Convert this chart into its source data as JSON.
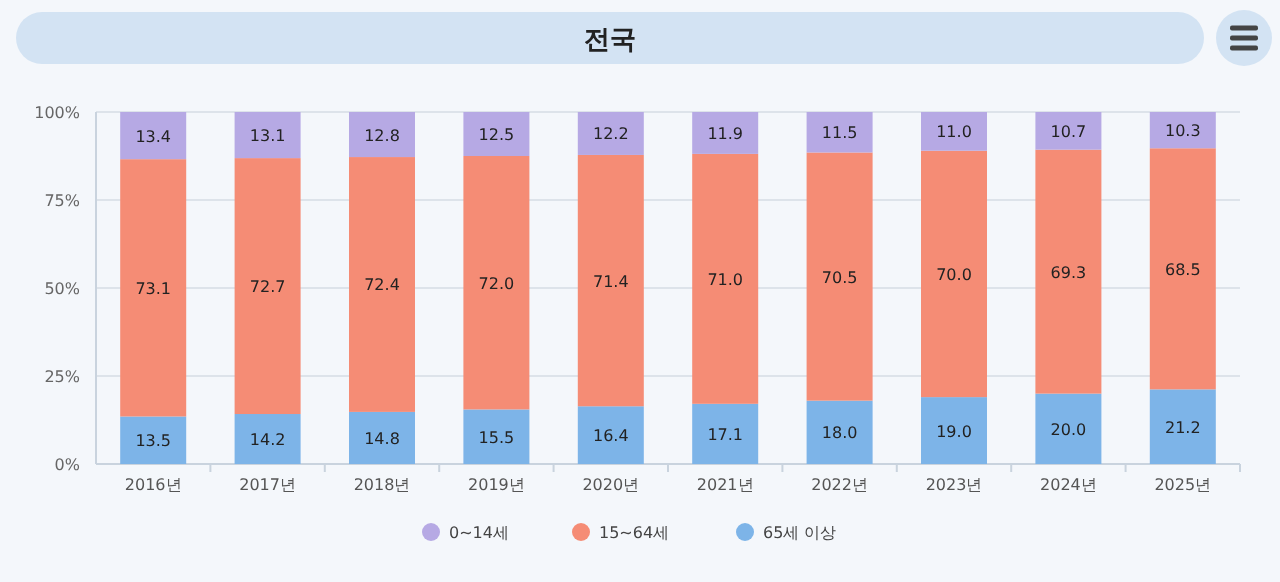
{
  "chart_data": {
    "type": "bar",
    "title": "전국",
    "stacked": true,
    "grid": "y",
    "legend": "bottom",
    "categories": [
      "2016년",
      "2017년",
      "2018년",
      "2019년",
      "2020년",
      "2021년",
      "2022년",
      "2023년",
      "2024년",
      "2025년"
    ],
    "ylim": [
      0,
      100
    ],
    "yticks": [
      {
        "value": 0,
        "label": "0%"
      },
      {
        "value": 25,
        "label": "25%"
      },
      {
        "value": 50,
        "label": "50%"
      },
      {
        "value": 75,
        "label": "75%"
      },
      {
        "value": 100,
        "label": "100%"
      }
    ],
    "series": [
      {
        "name": "65세 이상",
        "color": "#7db4e8",
        "values": [
          13.5,
          14.2,
          14.8,
          15.5,
          16.4,
          17.1,
          18.0,
          19.0,
          20.0,
          21.2
        ],
        "value_labels": [
          "13.5",
          "14.2",
          "14.8",
          "15.5",
          "16.4",
          "17.1",
          "18.0",
          "19.0",
          "20.0",
          "21.2"
        ]
      },
      {
        "name": "15~64세",
        "color": "#f58c75",
        "values": [
          73.1,
          72.7,
          72.4,
          72.0,
          71.4,
          71.0,
          70.5,
          70.0,
          69.3,
          68.5
        ],
        "value_labels": [
          "73.1",
          "72.7",
          "72.4",
          "72.0",
          "71.4",
          "71.0",
          "70.5",
          "70.0",
          "69.3",
          "68.5"
        ]
      },
      {
        "name": "0~14세",
        "color": "#b6a9e4",
        "values": [
          13.4,
          13.1,
          12.8,
          12.5,
          12.2,
          11.9,
          11.5,
          11.0,
          10.7,
          10.3
        ],
        "value_labels": [
          "13.4",
          "13.1",
          "12.8",
          "12.5",
          "12.2",
          "11.9",
          "11.5",
          "11.0",
          "10.7",
          "10.3"
        ]
      }
    ]
  }
}
